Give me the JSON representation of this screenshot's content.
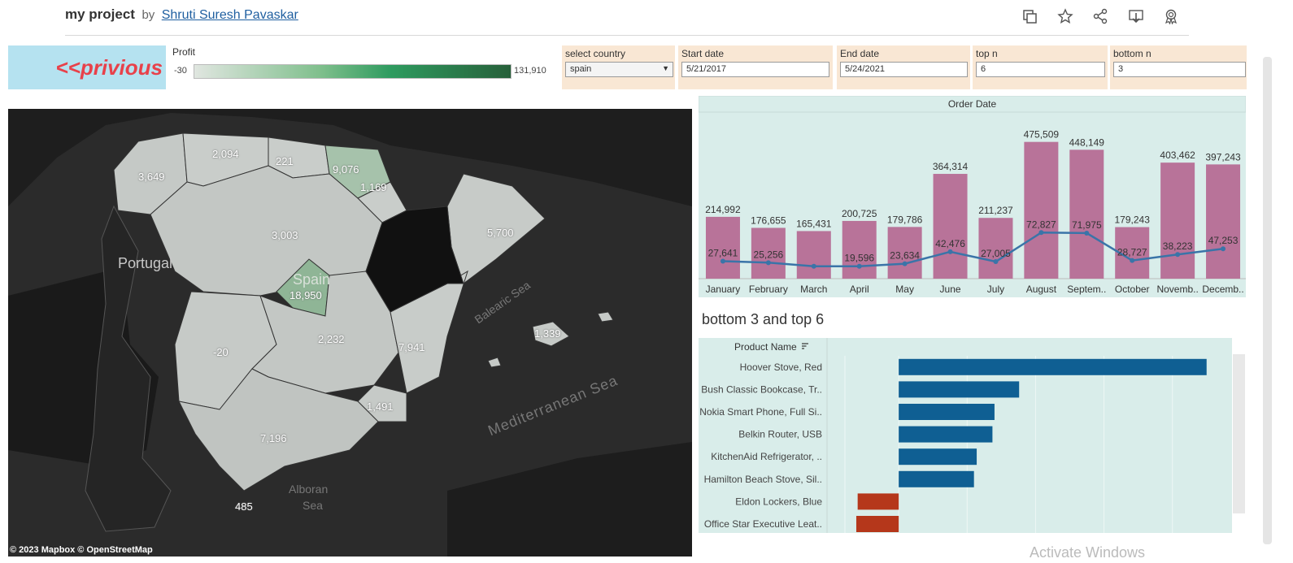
{
  "header": {
    "title": "my project",
    "by": "by",
    "author": "Shruti Suresh Pavaskar",
    "icons": [
      "duplicate-icon",
      "star-icon",
      "share-icon",
      "download-icon",
      "badge-icon"
    ]
  },
  "nav": {
    "prev_label": "<<privious"
  },
  "legend": {
    "title": "Profit",
    "min": "-30",
    "max": "131,910"
  },
  "filters": [
    {
      "label": "select country",
      "value": "spain",
      "type": "select"
    },
    {
      "label": "Start date",
      "value": "5/21/2017",
      "type": "text"
    },
    {
      "label": "End date",
      "value": "5/24/2021",
      "type": "text"
    },
    {
      "label": "top n",
      "value": "6",
      "type": "text"
    },
    {
      "label": "bottom n",
      "value": "3",
      "type": "text"
    }
  ],
  "map": {
    "attribution": "© 2023 Mapbox  © OpenStreetMap",
    "geo_labels": [
      "Portugal",
      "Spain",
      "Balearic Sea",
      "Mediterranean Sea",
      "Alboran",
      "Sea"
    ],
    "region_values": [
      "3,649",
      "2,094",
      "221",
      "9,076",
      "1,169",
      "3,003",
      "5,700",
      "18,950",
      "-20",
      "2,232",
      "7,941",
      "1,339",
      "1,491",
      "7,196",
      "485"
    ]
  },
  "chart_data": [
    {
      "type": "bar",
      "title": "Order Date",
      "categories": [
        "January",
        "February",
        "March",
        "April",
        "May",
        "June",
        "July",
        "August",
        "Septem..",
        "October",
        "Novemb..",
        "Decemb.."
      ],
      "series": [
        {
          "name": "Sales",
          "type": "bar",
          "values": [
            214992,
            176655,
            165431,
            200725,
            179786,
            364314,
            211237,
            475509,
            448149,
            179243,
            403462,
            397243
          ],
          "labels": [
            "214,992",
            "176,655",
            "165,431",
            "200,725",
            "179,786",
            "364,314",
            "211,237",
            "475,509",
            "448,149",
            "179,243",
            "403,462",
            "397,243"
          ]
        },
        {
          "name": "Profit",
          "type": "line",
          "values": [
            27641,
            25256,
            19596,
            19596,
            23634,
            42476,
            27005,
            72827,
            71975,
            28727,
            38223,
            47253
          ],
          "labels": [
            "27,641",
            "25,256",
            "",
            "19,596",
            "23,634",
            "42,476",
            "27,005",
            "72,827",
            "71,975",
            "28,727",
            "38,223",
            "47,253"
          ]
        }
      ],
      "ylim": [
        0,
        500000
      ]
    },
    {
      "type": "bar",
      "title": "bottom 3 and top  6",
      "header": "Product Name",
      "categories": [
        "Hoover Stove, Red",
        "Bush Classic Bookcase, Tr..",
        "Nokia Smart Phone, Full Si..",
        "Belkin Router, USB",
        "KitchenAid Refrigerator, ..",
        "Hamilton Beach Stove, Sil..",
        "Eldon Lockers, Blue",
        "Office Star Executive Leat.."
      ],
      "values": [
        4500,
        1760,
        1400,
        1370,
        1140,
        1100,
        -600,
        -620
      ],
      "colors": [
        "#0f5f93",
        "#0f5f93",
        "#0f5f93",
        "#0f5f93",
        "#0f5f93",
        "#0f5f93",
        "#b5371b",
        "#b5371b"
      ],
      "xlim": [
        -1000,
        4800
      ]
    }
  ],
  "watermark": "Activate Windows"
}
